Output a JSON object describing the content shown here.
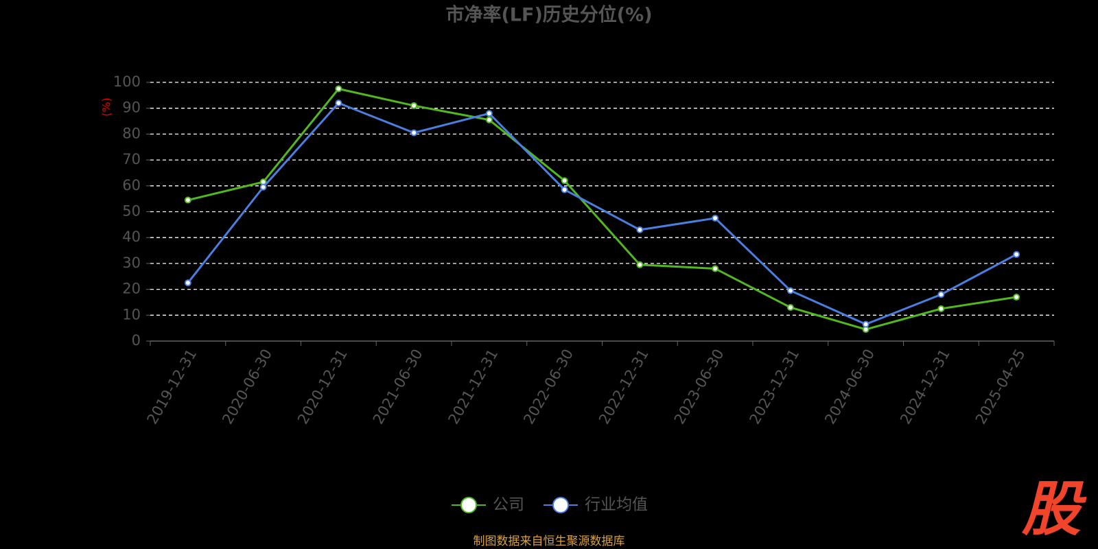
{
  "chart_data": {
    "type": "line",
    "title": "市净率(LF)历史分位(%)",
    "y_label": "(%)",
    "categories": [
      "2019-12-31",
      "2020-06-30",
      "2020-12-31",
      "2021-06-30",
      "2021-12-31",
      "2022-06-30",
      "2022-12-31",
      "2023-06-30",
      "2023-12-31",
      "2024-06-30",
      "2024-12-31",
      "2025-04-25"
    ],
    "series": [
      {
        "name": "公司",
        "color": "#52b820",
        "values": [
          54.5,
          61.5,
          97.5,
          91,
          85.5,
          62,
          29.5,
          28,
          13,
          4.5,
          12.5,
          17
        ]
      },
      {
        "name": "行业均值",
        "color": "#4a7fe0",
        "values": [
          22.5,
          59.5,
          92,
          80.5,
          88,
          58.5,
          43,
          47.5,
          19.5,
          6.5,
          18,
          33.5
        ]
      }
    ],
    "ylim": [
      0,
      100
    ],
    "yticks": [
      0,
      10,
      20,
      30,
      40,
      50,
      60,
      70,
      80,
      90,
      100
    ],
    "grid": true,
    "legend": "bottom",
    "source": "制图数据来自恒生聚源数据库",
    "watermark": "股"
  }
}
